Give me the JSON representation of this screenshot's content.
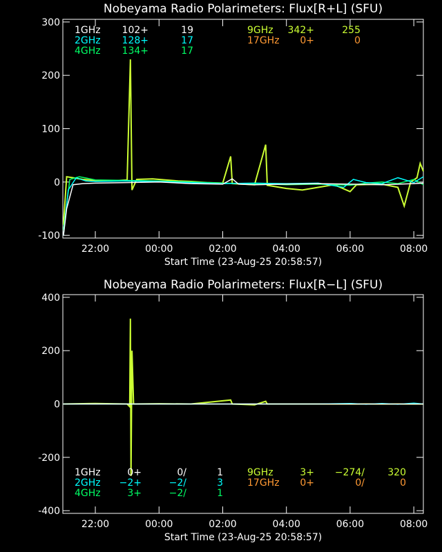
{
  "chart_data": [
    {
      "type": "line",
      "title": "Nobeyama Radio Polarimeters: Flux[R+L] (SFU)",
      "xlabel": "Start Time (23-Aug-25 20:58:57)",
      "ylim": [
        -105,
        305
      ],
      "yticks": [
        -100,
        0,
        100,
        200,
        300
      ],
      "xlim_hours": [
        20.98,
        32.3
      ],
      "xticks": [
        {
          "h": 22,
          "label": "22:00"
        },
        {
          "h": 24,
          "label": "00:00"
        },
        {
          "h": 26,
          "label": "02:00"
        },
        {
          "h": 28,
          "label": "04:00"
        },
        {
          "h": 30,
          "label": "06:00"
        },
        {
          "h": 32,
          "label": "08:00"
        }
      ],
      "legend": [
        {
          "freq": "1GHz",
          "mean": "102+",
          "sd": "19",
          "color": "#ffffff"
        },
        {
          "freq": "2GHz",
          "mean": "128+",
          "sd": "17",
          "color": "#00ffff"
        },
        {
          "freq": "4GHz",
          "mean": "134+",
          "sd": "17",
          "color": "#00ff66"
        },
        {
          "freq": "9GHz",
          "mean": "342+",
          "sd": "255",
          "color": "#ccff33"
        },
        {
          "freq": "17GHz",
          "mean": "0+",
          "sd": "0",
          "color": "#ff9933"
        }
      ],
      "series": [
        {
          "name": "9GHz",
          "color": "#ccff33",
          "points": [
            [
              21.0,
              -80
            ],
            [
              21.1,
              10
            ],
            [
              21.3,
              8
            ],
            [
              21.6,
              5
            ],
            [
              22.0,
              3
            ],
            [
              22.5,
              2
            ],
            [
              23.0,
              4
            ],
            [
              23.1,
              230
            ],
            [
              23.15,
              -15
            ],
            [
              23.3,
              5
            ],
            [
              23.8,
              6
            ],
            [
              24.2,
              4
            ],
            [
              24.6,
              2
            ],
            [
              25.0,
              1
            ],
            [
              25.5,
              -1
            ],
            [
              26.0,
              -2
            ],
            [
              26.25,
              48
            ],
            [
              26.3,
              -3
            ],
            [
              27.0,
              -5
            ],
            [
              27.35,
              70
            ],
            [
              27.4,
              -6
            ],
            [
              28.0,
              -12
            ],
            [
              28.5,
              -15
            ],
            [
              29.0,
              -10
            ],
            [
              29.5,
              -5
            ],
            [
              30.0,
              -18
            ],
            [
              30.2,
              -5
            ],
            [
              31.0,
              -4
            ],
            [
              31.5,
              -10
            ],
            [
              31.7,
              -45
            ],
            [
              31.9,
              0
            ],
            [
              32.1,
              8
            ],
            [
              32.2,
              35
            ],
            [
              32.3,
              20
            ]
          ]
        },
        {
          "name": "4GHz",
          "color": "#00ff66",
          "points": [
            [
              21.0,
              -90
            ],
            [
              21.2,
              5
            ],
            [
              21.5,
              10
            ],
            [
              22.0,
              4
            ],
            [
              23.0,
              3
            ],
            [
              24.0,
              2
            ],
            [
              25.0,
              0
            ],
            [
              26.0,
              -2
            ],
            [
              27.0,
              -3
            ],
            [
              28.0,
              -5
            ],
            [
              29.0,
              -4
            ],
            [
              30.0,
              -6
            ],
            [
              30.5,
              -2
            ],
            [
              31.0,
              0
            ],
            [
              31.5,
              -3
            ],
            [
              32.0,
              5
            ],
            [
              32.3,
              -5
            ]
          ]
        },
        {
          "name": "2GHz",
          "color": "#00ffff",
          "points": [
            [
              21.0,
              -100
            ],
            [
              21.15,
              -15
            ],
            [
              21.4,
              8
            ],
            [
              21.7,
              2
            ],
            [
              22.0,
              1
            ],
            [
              23.0,
              2
            ],
            [
              24.0,
              1
            ],
            [
              25.0,
              -1
            ],
            [
              26.0,
              -3
            ],
            [
              27.0,
              -2
            ],
            [
              28.0,
              -3
            ],
            [
              29.0,
              -2
            ],
            [
              29.8,
              -10
            ],
            [
              30.1,
              5
            ],
            [
              30.5,
              -1
            ],
            [
              31.0,
              -3
            ],
            [
              31.5,
              8
            ],
            [
              32.0,
              -1
            ],
            [
              32.3,
              10
            ]
          ]
        },
        {
          "name": "1GHz",
          "color": "#ffffff",
          "points": [
            [
              21.0,
              -100
            ],
            [
              21.1,
              -50
            ],
            [
              21.3,
              -5
            ],
            [
              21.6,
              -3
            ],
            [
              22.0,
              -2
            ],
            [
              23.0,
              -1
            ],
            [
              24.0,
              0
            ],
            [
              25.0,
              -3
            ],
            [
              26.0,
              -4
            ],
            [
              26.3,
              6
            ],
            [
              26.5,
              -4
            ],
            [
              27.0,
              -5
            ],
            [
              28.0,
              -4
            ],
            [
              29.0,
              -3
            ],
            [
              30.0,
              -4
            ],
            [
              31.0,
              -5
            ],
            [
              32.0,
              -3
            ],
            [
              32.3,
              -2
            ]
          ]
        }
      ]
    },
    {
      "type": "line",
      "title": "Nobeyama Radio Polarimeters: Flux[R−L] (SFU)",
      "xlabel": "Start Time (23-Aug-25 20:58:57)",
      "ylim": [
        -410,
        410
      ],
      "yticks": [
        -400,
        -200,
        0,
        200,
        400
      ],
      "xlim_hours": [
        20.98,
        32.3
      ],
      "xticks": [
        {
          "h": 22,
          "label": "22:00"
        },
        {
          "h": 24,
          "label": "00:00"
        },
        {
          "h": 26,
          "label": "02:00"
        },
        {
          "h": 28,
          "label": "04:00"
        },
        {
          "h": 30,
          "label": "06:00"
        },
        {
          "h": 32,
          "label": "08:00"
        }
      ],
      "legend": [
        {
          "freq": "1GHz",
          "mean": "0+",
          "ratio": "0/",
          "sd": "1",
          "color": "#ffffff"
        },
        {
          "freq": "2GHz",
          "mean": "−2+",
          "ratio": "−2/",
          "sd": "3",
          "color": "#00ffff"
        },
        {
          "freq": "4GHz",
          "mean": "3+",
          "ratio": "−2/",
          "sd": "1",
          "color": "#00ff66"
        },
        {
          "freq": "9GHz",
          "mean": "3+",
          "ratio": "−274/",
          "sd": "320",
          "color": "#ccff33"
        },
        {
          "freq": "17GHz",
          "mean": "0+",
          "ratio": "0/",
          "sd": "0",
          "color": "#ff9933"
        }
      ],
      "series": [
        {
          "name": "9GHz",
          "color": "#ccff33",
          "points": [
            [
              21.0,
              0
            ],
            [
              22.0,
              2
            ],
            [
              23.0,
              0
            ],
            [
              23.08,
              -10
            ],
            [
              23.1,
              320
            ],
            [
              23.12,
              -270
            ],
            [
              23.15,
              200
            ],
            [
              23.2,
              0
            ],
            [
              24.0,
              1
            ],
            [
              25.0,
              0
            ],
            [
              26.25,
              15
            ],
            [
              26.3,
              0
            ],
            [
              27.0,
              -3
            ],
            [
              27.35,
              10
            ],
            [
              27.4,
              0
            ],
            [
              28.0,
              0
            ],
            [
              29.0,
              0
            ],
            [
              30.0,
              0
            ],
            [
              31.0,
              0
            ],
            [
              32.3,
              0
            ]
          ]
        },
        {
          "name": "2GHz",
          "color": "#00ffff",
          "points": [
            [
              21.0,
              0
            ],
            [
              25.0,
              0
            ],
            [
              29.0,
              0
            ],
            [
              30.0,
              2
            ],
            [
              30.5,
              -1
            ],
            [
              31.0,
              2
            ],
            [
              31.5,
              -1
            ],
            [
              32.0,
              3
            ],
            [
              32.3,
              0
            ]
          ]
        },
        {
          "name": "1GHz",
          "color": "#ffffff",
          "points": [
            [
              21.0,
              0
            ],
            [
              32.3,
              0
            ]
          ]
        }
      ]
    }
  ]
}
